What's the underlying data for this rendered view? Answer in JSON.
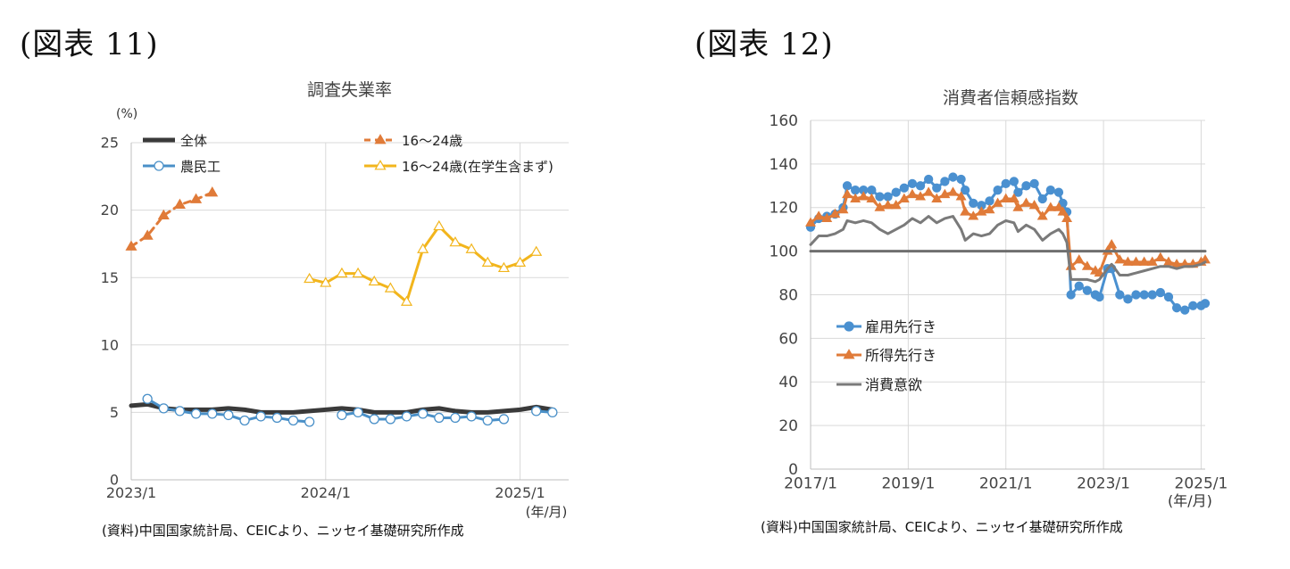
{
  "figure11": {
    "label": "(図表 11)",
    "source": "(資料)中国国家統計局、CEICより、ニッセイ基礎研究所作成"
  },
  "figure12": {
    "label": "(図表 12)",
    "source": "(資料)中国国家統計局、CEICより、ニッセイ基礎研究所作成"
  },
  "chart_data": [
    {
      "type": "line",
      "title": "調査失業率",
      "ylabel": "(%)",
      "xlabel": "(年/月)",
      "ylim": [
        0,
        25
      ],
      "yticks": [
        "0",
        "5",
        "10",
        "15",
        "20",
        "25"
      ],
      "xtick_labels": [
        "2023/1",
        "2024/1",
        "2025/1"
      ],
      "xlim": [
        "2023/1",
        "2025/4"
      ],
      "grid": true,
      "legend_position": "top",
      "series": [
        {
          "name": "全体",
          "color": "#3a3a3a",
          "marker": "none",
          "style": "solid",
          "points": [
            [
              "2023/1",
              5.5
            ],
            [
              "2023/2",
              5.6
            ],
            [
              "2023/3",
              5.3
            ],
            [
              "2023/4",
              5.2
            ],
            [
              "2023/5",
              5.2
            ],
            [
              "2023/6",
              5.2
            ],
            [
              "2023/7",
              5.3
            ],
            [
              "2023/8",
              5.2
            ],
            [
              "2023/9",
              5.0
            ],
            [
              "2023/10",
              5.0
            ],
            [
              "2023/11",
              5.0
            ],
            [
              "2023/12",
              5.1
            ],
            [
              "2024/1",
              5.2
            ],
            [
              "2024/2",
              5.3
            ],
            [
              "2024/3",
              5.2
            ],
            [
              "2024/4",
              5.0
            ],
            [
              "2024/5",
              5.0
            ],
            [
              "2024/6",
              5.0
            ],
            [
              "2024/7",
              5.2
            ],
            [
              "2024/8",
              5.3
            ],
            [
              "2024/9",
              5.1
            ],
            [
              "2024/10",
              5.0
            ],
            [
              "2024/11",
              5.0
            ],
            [
              "2024/12",
              5.1
            ],
            [
              "2025/1",
              5.2
            ],
            [
              "2025/2",
              5.4
            ],
            [
              "2025/3",
              5.2
            ]
          ]
        },
        {
          "name": "16～24歳",
          "color": "#e07b39",
          "marker": "filled-triangle",
          "style": "dashed",
          "points": [
            [
              "2023/1",
              17.3
            ],
            [
              "2023/2",
              18.1
            ],
            [
              "2023/3",
              19.6
            ],
            [
              "2023/4",
              20.4
            ],
            [
              "2023/5",
              20.8
            ],
            [
              "2023/6",
              21.3
            ]
          ]
        },
        {
          "name": "農民工",
          "color": "#4a90c8",
          "marker": "open-circle",
          "style": "solid",
          "points": [
            [
              "2023/2",
              6.0
            ],
            [
              "2023/3",
              5.3
            ],
            [
              "2023/4",
              5.1
            ],
            [
              "2023/5",
              4.9
            ],
            [
              "2023/6",
              4.9
            ],
            [
              "2023/7",
              4.8
            ],
            [
              "2023/8",
              4.4
            ],
            [
              "2023/9",
              4.7
            ],
            [
              "2023/10",
              4.6
            ],
            [
              "2023/11",
              4.4
            ],
            [
              "2023/12",
              4.3
            ],
            [
              "2024/2",
              4.8
            ],
            [
              "2024/3",
              5.0
            ],
            [
              "2024/4",
              4.5
            ],
            [
              "2024/5",
              4.5
            ],
            [
              "2024/6",
              4.7
            ],
            [
              "2024/7",
              4.9
            ],
            [
              "2024/8",
              4.6
            ],
            [
              "2024/9",
              4.6
            ],
            [
              "2024/10",
              4.7
            ],
            [
              "2024/11",
              4.4
            ],
            [
              "2024/12",
              4.5
            ],
            [
              "2025/2",
              5.1
            ],
            [
              "2025/3",
              5.0
            ]
          ]
        },
        {
          "name": "16～24歳(在学生含まず)",
          "color": "#f2b51c",
          "marker": "open-triangle",
          "style": "solid",
          "points": [
            [
              "2023/12",
              14.9
            ],
            [
              "2024/1",
              14.6
            ],
            [
              "2024/2",
              15.3
            ],
            [
              "2024/3",
              15.3
            ],
            [
              "2024/4",
              14.7
            ],
            [
              "2024/5",
              14.2
            ],
            [
              "2024/6",
              13.2
            ],
            [
              "2024/7",
              17.1
            ],
            [
              "2024/8",
              18.8
            ],
            [
              "2024/9",
              17.6
            ],
            [
              "2024/10",
              17.1
            ],
            [
              "2024/11",
              16.1
            ],
            [
              "2024/12",
              15.7
            ],
            [
              "2025/1",
              16.1
            ],
            [
              "2025/2",
              16.9
            ]
          ]
        }
      ]
    },
    {
      "type": "line",
      "title": "消費者信頼感指数",
      "xlabel": "(年/月)",
      "ylim": [
        0,
        160
      ],
      "yticks": [
        "0",
        "20",
        "40",
        "60",
        "80",
        "100",
        "120",
        "140",
        "160"
      ],
      "xtick_labels": [
        "2017/1",
        "2019/1",
        "2021/1",
        "2023/1",
        "2025/1"
      ],
      "xlim": [
        "2017/1",
        "2025/2"
      ],
      "grid": true,
      "legend_position": "lower-left",
      "series": [
        {
          "name": "雇用先行き",
          "color": "#4a90d0",
          "marker": "filled-circle",
          "points": [
            [
              "2017/1",
              111
            ],
            [
              "2017/3",
              115
            ],
            [
              "2017/5",
              116
            ],
            [
              "2017/7",
              117
            ],
            [
              "2017/9",
              120
            ],
            [
              "2017/10",
              130
            ],
            [
              "2017/12",
              128
            ],
            [
              "2018/2",
              128
            ],
            [
              "2018/4",
              128
            ],
            [
              "2018/6",
              125
            ],
            [
              "2018/8",
              125
            ],
            [
              "2018/10",
              127
            ],
            [
              "2018/12",
              129
            ],
            [
              "2019/2",
              131
            ],
            [
              "2019/4",
              130
            ],
            [
              "2019/6",
              133
            ],
            [
              "2019/8",
              129
            ],
            [
              "2019/10",
              132
            ],
            [
              "2019/12",
              134
            ],
            [
              "2020/2",
              133
            ],
            [
              "2020/3",
              128
            ],
            [
              "2020/5",
              122
            ],
            [
              "2020/7",
              121
            ],
            [
              "2020/9",
              123
            ],
            [
              "2020/11",
              128
            ],
            [
              "2021/1",
              131
            ],
            [
              "2021/3",
              132
            ],
            [
              "2021/4",
              127
            ],
            [
              "2021/6",
              130
            ],
            [
              "2021/8",
              131
            ],
            [
              "2021/10",
              124
            ],
            [
              "2021/12",
              128
            ],
            [
              "2022/2",
              127
            ],
            [
              "2022/3",
              122
            ],
            [
              "2022/4",
              118
            ],
            [
              "2022/5",
              80
            ],
            [
              "2022/7",
              84
            ],
            [
              "2022/9",
              82
            ],
            [
              "2022/11",
              80
            ],
            [
              "2022/12",
              79
            ],
            [
              "2023/2",
              92
            ],
            [
              "2023/3",
              92
            ],
            [
              "2023/5",
              80
            ],
            [
              "2023/7",
              78
            ],
            [
              "2023/9",
              80
            ],
            [
              "2023/11",
              80
            ],
            [
              "2024/1",
              80
            ],
            [
              "2024/3",
              81
            ],
            [
              "2024/5",
              79
            ],
            [
              "2024/7",
              74
            ],
            [
              "2024/9",
              73
            ],
            [
              "2024/11",
              75
            ],
            [
              "2025/1",
              75
            ],
            [
              "2025/2",
              76
            ]
          ]
        },
        {
          "name": "所得先行き",
          "color": "#e07b39",
          "marker": "filled-triangle",
          "points": [
            [
              "2017/1",
              113
            ],
            [
              "2017/3",
              116
            ],
            [
              "2017/5",
              115
            ],
            [
              "2017/7",
              117
            ],
            [
              "2017/9",
              119
            ],
            [
              "2017/10",
              126
            ],
            [
              "2017/12",
              124
            ],
            [
              "2018/2",
              125
            ],
            [
              "2018/4",
              124
            ],
            [
              "2018/6",
              120
            ],
            [
              "2018/8",
              121
            ],
            [
              "2018/10",
              121
            ],
            [
              "2018/12",
              124
            ],
            [
              "2019/2",
              126
            ],
            [
              "2019/4",
              125
            ],
            [
              "2019/6",
              127
            ],
            [
              "2019/8",
              124
            ],
            [
              "2019/10",
              126
            ],
            [
              "2019/12",
              127
            ],
            [
              "2020/2",
              125
            ],
            [
              "2020/3",
              118
            ],
            [
              "2020/5",
              116
            ],
            [
              "2020/7",
              118
            ],
            [
              "2020/9",
              119
            ],
            [
              "2020/11",
              122
            ],
            [
              "2021/1",
              124
            ],
            [
              "2021/3",
              124
            ],
            [
              "2021/4",
              120
            ],
            [
              "2021/6",
              122
            ],
            [
              "2021/8",
              121
            ],
            [
              "2021/10",
              116
            ],
            [
              "2021/12",
              120
            ],
            [
              "2022/2",
              120
            ],
            [
              "2022/3",
              118
            ],
            [
              "2022/4",
              115
            ],
            [
              "2022/5",
              93
            ],
            [
              "2022/7",
              96
            ],
            [
              "2022/9",
              93
            ],
            [
              "2022/11",
              91
            ],
            [
              "2022/12",
              90
            ],
            [
              "2023/2",
              100
            ],
            [
              "2023/3",
              103
            ],
            [
              "2023/5",
              96
            ],
            [
              "2023/7",
              95
            ],
            [
              "2023/9",
              95
            ],
            [
              "2023/11",
              95
            ],
            [
              "2024/1",
              95
            ],
            [
              "2024/3",
              97
            ],
            [
              "2024/5",
              95
            ],
            [
              "2024/7",
              94
            ],
            [
              "2024/9",
              94
            ],
            [
              "2024/11",
              94
            ],
            [
              "2025/1",
              95
            ],
            [
              "2025/2",
              96
            ]
          ]
        },
        {
          "name": "消費意欲",
          "color": "#7a7a7a",
          "marker": "none",
          "points": [
            [
              "2017/1",
              103
            ],
            [
              "2017/3",
              107
            ],
            [
              "2017/5",
              107
            ],
            [
              "2017/7",
              108
            ],
            [
              "2017/9",
              110
            ],
            [
              "2017/10",
              114
            ],
            [
              "2017/12",
              113
            ],
            [
              "2018/2",
              114
            ],
            [
              "2018/4",
              113
            ],
            [
              "2018/6",
              110
            ],
            [
              "2018/8",
              108
            ],
            [
              "2018/10",
              110
            ],
            [
              "2018/12",
              112
            ],
            [
              "2019/2",
              115
            ],
            [
              "2019/4",
              113
            ],
            [
              "2019/6",
              116
            ],
            [
              "2019/8",
              113
            ],
            [
              "2019/10",
              115
            ],
            [
              "2019/12",
              116
            ],
            [
              "2020/2",
              110
            ],
            [
              "2020/3",
              105
            ],
            [
              "2020/5",
              108
            ],
            [
              "2020/7",
              107
            ],
            [
              "2020/9",
              108
            ],
            [
              "2020/11",
              112
            ],
            [
              "2021/1",
              114
            ],
            [
              "2021/3",
              113
            ],
            [
              "2021/4",
              109
            ],
            [
              "2021/6",
              112
            ],
            [
              "2021/8",
              110
            ],
            [
              "2021/10",
              105
            ],
            [
              "2021/12",
              108
            ],
            [
              "2022/2",
              110
            ],
            [
              "2022/3",
              108
            ],
            [
              "2022/4",
              104
            ],
            [
              "2022/5",
              87
            ],
            [
              "2022/7",
              87
            ],
            [
              "2022/9",
              87
            ],
            [
              "2022/11",
              86
            ],
            [
              "2022/12",
              87
            ],
            [
              "2023/2",
              92
            ],
            [
              "2023/3",
              94
            ],
            [
              "2023/5",
              89
            ],
            [
              "2023/7",
              89
            ],
            [
              "2023/9",
              90
            ],
            [
              "2023/11",
              91
            ],
            [
              "2024/1",
              92
            ],
            [
              "2024/3",
              93
            ],
            [
              "2024/5",
              93
            ],
            [
              "2024/7",
              92
            ],
            [
              "2024/9",
              93
            ],
            [
              "2024/11",
              93
            ],
            [
              "2025/1",
              94
            ],
            [
              "2025/2",
              95
            ]
          ]
        },
        {
          "name": "",
          "color": "#6e6e6e",
          "marker": "none",
          "points": [
            [
              "2017/1",
              100
            ],
            [
              "2025/2",
              100
            ]
          ]
        }
      ]
    }
  ]
}
